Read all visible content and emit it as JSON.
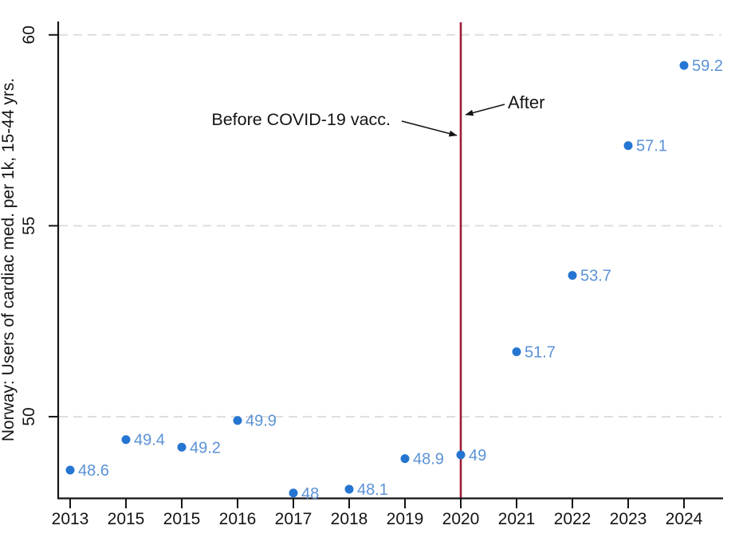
{
  "chart_data": {
    "type": "scatter",
    "title": "",
    "xlabel": "",
    "ylabel": "Norway: Users of cardiac med. per 1k, 15-44 yrs.",
    "categories": [
      "2013",
      "2015",
      "2015",
      "2016",
      "2017",
      "2018",
      "2019",
      "2020",
      "2021",
      "2022",
      "2023",
      "2024"
    ],
    "values": [
      48.6,
      49.4,
      49.2,
      49.9,
      48,
      48.1,
      48.9,
      49,
      51.7,
      53.7,
      57.1,
      59.2
    ],
    "point_labels": [
      "48.6",
      "49.4",
      "49.2",
      "49.9",
      "48",
      "48.1",
      "48.9",
      "49",
      "51.7",
      "53.7",
      "57.1",
      "59.2"
    ],
    "yticks": [
      50,
      55,
      60
    ],
    "ytick_labels": [
      "50",
      "55",
      "60"
    ],
    "ylim": [
      47.86,
      60.35
    ],
    "grid": "horizontal dashed gridlines at yticks, legend off",
    "vline": {
      "at_category": "2020",
      "category_index": 7,
      "meaning": "COVID-19 vaccination start"
    },
    "annotations": {
      "before": {
        "text": "Before COVID-19 vacc."
      },
      "after": {
        "text": "After"
      }
    },
    "colors": {
      "point": "#2575d2",
      "point_label": "#5b92d6",
      "vline": "#9e1b36",
      "grid": "#dedede",
      "axis": "#141414"
    }
  }
}
